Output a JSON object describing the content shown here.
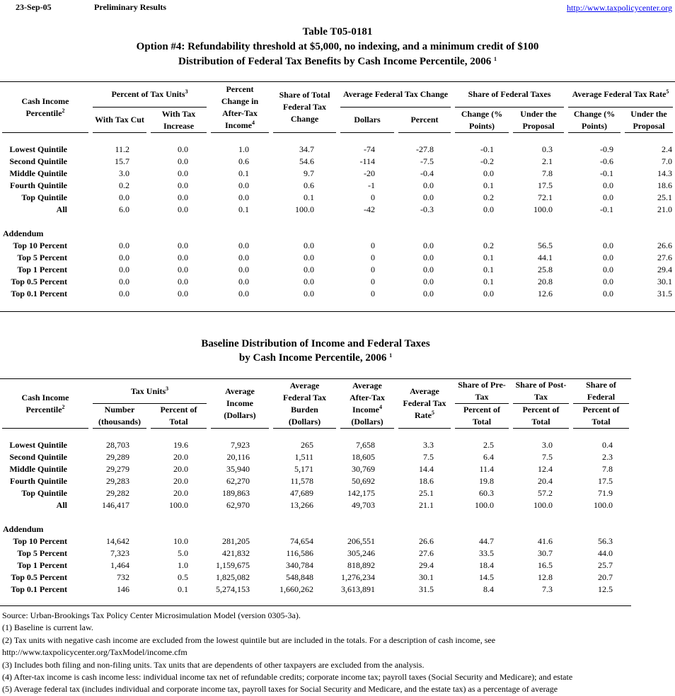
{
  "header": {
    "date": "23-Sep-05",
    "status": "Preliminary Results",
    "url": "http://www.taxpolicycenter.org"
  },
  "title": {
    "line1": "Table T05-0181",
    "line2": "Option #4: Refundability threshold at $5,000, no indexing, and a minimum credit of $100",
    "line3": "Distribution of Federal Tax Benefits by Cash Income Percentile, 2006",
    "sup": "1"
  },
  "table1": {
    "columns": [
      {
        "text": "Cash Income Percentile",
        "sup": "2"
      },
      {
        "text": "Percent of Tax Units",
        "sup": "3",
        "sub": [
          {
            "text": "With Tax Cut"
          },
          {
            "text": "With Tax Increase"
          }
        ]
      },
      {
        "text": "Percent Change in After-Tax Income",
        "sup": "4"
      },
      {
        "text": "Share of Total Federal Tax Change"
      },
      {
        "text": "Average Federal Tax Change",
        "sub": [
          {
            "text": "Dollars"
          },
          {
            "text": "Percent"
          }
        ]
      },
      {
        "text": "Share of Federal Taxes",
        "sub": [
          {
            "text": "Change (% Points)"
          },
          {
            "text": "Under the Proposal"
          }
        ]
      },
      {
        "text": "Average Federal Tax Rate",
        "sup": "5",
        "sub": [
          {
            "text": "Change (% Points)"
          },
          {
            "text": "Under the Proposal"
          }
        ]
      }
    ],
    "rows": [
      {
        "label": "Lowest Quintile",
        "values": [
          "11.2",
          "0.0",
          "1.0",
          "34.7",
          "-74",
          "-27.8",
          "-0.1",
          "0.3",
          "-0.9",
          "2.4"
        ]
      },
      {
        "label": "Second Quintile",
        "values": [
          "15.7",
          "0.0",
          "0.6",
          "54.6",
          "-114",
          "-7.5",
          "-0.2",
          "2.1",
          "-0.6",
          "7.0"
        ]
      },
      {
        "label": "Middle Quintile",
        "values": [
          "3.0",
          "0.0",
          "0.1",
          "9.7",
          "-20",
          "-0.4",
          "0.0",
          "7.8",
          "-0.1",
          "14.3"
        ]
      },
      {
        "label": "Fourth Quintile",
        "values": [
          "0.2",
          "0.0",
          "0.0",
          "0.6",
          "-1",
          "0.0",
          "0.1",
          "17.5",
          "0.0",
          "18.6"
        ]
      },
      {
        "label": "Top Quintile",
        "values": [
          "0.0",
          "0.0",
          "0.0",
          "0.1",
          "0",
          "0.0",
          "0.2",
          "72.1",
          "0.0",
          "25.1"
        ]
      },
      {
        "label": "All",
        "values": [
          "6.0",
          "0.0",
          "0.1",
          "100.0",
          "-42",
          "-0.3",
          "0.0",
          "100.0",
          "-0.1",
          "21.0"
        ]
      }
    ],
    "addendum_label": "Addendum",
    "addendum_rows": [
      {
        "label": "Top 10 Percent",
        "values": [
          "0.0",
          "0.0",
          "0.0",
          "0.0",
          "0",
          "0.0",
          "0.2",
          "56.5",
          "0.0",
          "26.6"
        ]
      },
      {
        "label": "Top 5 Percent",
        "values": [
          "0.0",
          "0.0",
          "0.0",
          "0.0",
          "0",
          "0.0",
          "0.1",
          "44.1",
          "0.0",
          "27.6"
        ]
      },
      {
        "label": "Top 1 Percent",
        "values": [
          "0.0",
          "0.0",
          "0.0",
          "0.0",
          "0",
          "0.0",
          "0.1",
          "25.8",
          "0.0",
          "29.4"
        ]
      },
      {
        "label": "Top 0.5 Percent",
        "values": [
          "0.0",
          "0.0",
          "0.0",
          "0.0",
          "0",
          "0.0",
          "0.1",
          "20.8",
          "0.0",
          "30.1"
        ]
      },
      {
        "label": "Top 0.1 Percent",
        "values": [
          "0.0",
          "0.0",
          "0.0",
          "0.0",
          "0",
          "0.0",
          "0.0",
          "12.6",
          "0.0",
          "31.5"
        ]
      }
    ]
  },
  "title2": {
    "line1": "Baseline Distribution of Income and Federal Taxes",
    "line2": "by Cash Income Percentile, 2006",
    "sup": "1"
  },
  "table2": {
    "columns": [
      {
        "text": "Cash Income Percentile",
        "sup": "2"
      },
      {
        "text": "Tax Units",
        "sup": "3",
        "sub": [
          {
            "text": "Number (thousands)"
          },
          {
            "text": "Percent of Total"
          }
        ]
      },
      {
        "text": "Average Income (Dollars)"
      },
      {
        "text": "Average Federal Tax Burden (Dollars)"
      },
      {
        "text": "Average After-Tax Income",
        "sup": "4",
        "suffix": "(Dollars)"
      },
      {
        "text": "Average Federal Tax Rate",
        "sup": "5"
      },
      {
        "text": "Share of Pre-Tax",
        "sub": [
          {
            "text": "Percent of Total"
          }
        ]
      },
      {
        "text": "Share of Post-Tax",
        "sub": [
          {
            "text": "Percent of Total"
          }
        ]
      },
      {
        "text": "Share of Federal",
        "sub": [
          {
            "text": "Percent of Total"
          }
        ]
      }
    ],
    "rows": [
      {
        "label": "Lowest Quintile",
        "values": [
          "28,703",
          "19.6",
          "7,923",
          "265",
          "7,658",
          "3.3",
          "2.5",
          "3.0",
          "0.4"
        ]
      },
      {
        "label": "Second Quintile",
        "values": [
          "29,289",
          "20.0",
          "20,116",
          "1,511",
          "18,605",
          "7.5",
          "6.4",
          "7.5",
          "2.3"
        ]
      },
      {
        "label": "Middle Quintile",
        "values": [
          "29,279",
          "20.0",
          "35,940",
          "5,171",
          "30,769",
          "14.4",
          "11.4",
          "12.4",
          "7.8"
        ]
      },
      {
        "label": "Fourth Quintile",
        "values": [
          "29,283",
          "20.0",
          "62,270",
          "11,578",
          "50,692",
          "18.6",
          "19.8",
          "20.4",
          "17.5"
        ]
      },
      {
        "label": "Top Quintile",
        "values": [
          "29,282",
          "20.0",
          "189,863",
          "47,689",
          "142,175",
          "25.1",
          "60.3",
          "57.2",
          "71.9"
        ]
      },
      {
        "label": "All",
        "values": [
          "146,417",
          "100.0",
          "62,970",
          "13,266",
          "49,703",
          "21.1",
          "100.0",
          "100.0",
          "100.0"
        ]
      }
    ],
    "addendum_label": "Addendum",
    "addendum_rows": [
      {
        "label": "Top 10 Percent",
        "values": [
          "14,642",
          "10.0",
          "281,205",
          "74,654",
          "206,551",
          "26.6",
          "44.7",
          "41.6",
          "56.3"
        ]
      },
      {
        "label": "Top 5 Percent",
        "values": [
          "7,323",
          "5.0",
          "421,832",
          "116,586",
          "305,246",
          "27.6",
          "33.5",
          "30.7",
          "44.0"
        ]
      },
      {
        "label": "Top 1 Percent",
        "values": [
          "1,464",
          "1.0",
          "1,159,675",
          "340,784",
          "818,892",
          "29.4",
          "18.4",
          "16.5",
          "25.7"
        ]
      },
      {
        "label": "Top 0.5 Percent",
        "values": [
          "732",
          "0.5",
          "1,825,082",
          "548,848",
          "1,276,234",
          "30.1",
          "14.5",
          "12.8",
          "20.7"
        ]
      },
      {
        "label": "Top 0.1 Percent",
        "values": [
          "146",
          "0.1",
          "5,274,153",
          "1,660,262",
          "3,613,891",
          "31.5",
          "8.4",
          "7.3",
          "12.5"
        ]
      }
    ]
  },
  "notes": [
    "Source: Urban-Brookings Tax Policy Center Microsimulation Model (version 0305-3a).",
    "(1) Baseline is current law.",
    "(2) Tax units with negative cash income are excluded from the lowest quintile but are included in the totals. For a description of cash income, see",
    "http://www.taxpolicycenter.org/TaxModel/income.cfm",
    "(3) Includes both filing and non-filing units.  Tax units that are dependents of other taxpayers are excluded from the analysis.",
    "(4) After-tax income is cash income less: individual income tax net of refundable credits; corporate income tax; payroll taxes (Social Security and Medicare); and estate",
    "(5) Average federal tax (includes individual and corporate income tax, payroll taxes for Social Security and Medicare, and the estate tax) as a percentage of average"
  ]
}
